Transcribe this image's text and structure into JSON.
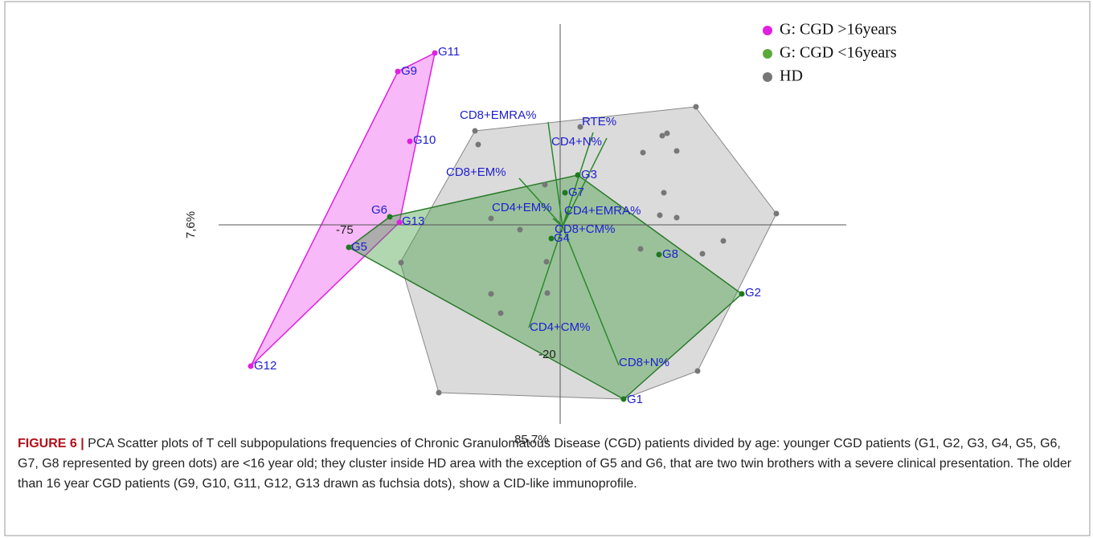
{
  "figure": {
    "axis_labels": {
      "horizontal": "85,7%",
      "vertical": "7,6%"
    },
    "tick_labels": [
      "-75",
      "-20"
    ],
    "legend": [
      "G: CGD >16years",
      "G: CGD <16years",
      "HD"
    ],
    "points": [
      "G1",
      "G2",
      "G3",
      "G4",
      "G5",
      "G6",
      "G7",
      "G8",
      "G9",
      "G10",
      "G11",
      "G12",
      "G13"
    ],
    "vectors": [
      "CD8+EMRA%",
      "RTE%",
      "CD4+N%",
      "CD8+EM%",
      "CD4+EM%",
      "CD4+EMRA%",
      "CD8+CM%",
      "CD4+CM%",
      "CD8+N%"
    ],
    "caption": {
      "label": "FIGURE 6 |",
      "text": "PCA Scatter plots of T cell subpopulations frequencies of Chronic Granulomatous Disease (CGD) patients divided by age: younger CGD patients (G1, G2, G3, G4, G5, G6, G7, G8 represented by green dots) are <16 year old; they cluster inside HD area with the exception of G5 and G6, that are two twin brothers with a severe clinical presentation. The older than 16 year CGD patients (G9, G10, G11, G12, G13 drawn as fuchsia dots), show a CID-like immunoprofile."
    }
  }
}
